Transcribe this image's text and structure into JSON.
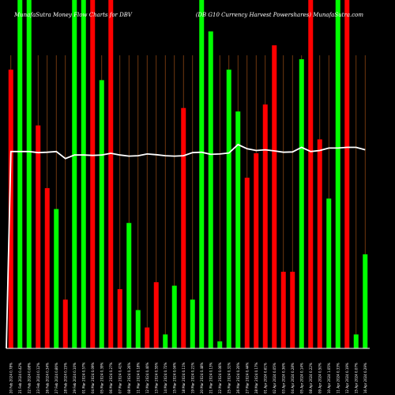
{
  "chart_data": {
    "type": "bar",
    "title_left": "MunafaSutra  Money Flow  Charts for DBV",
    "title_right": "(DB G10  Currency Harvest Powershares) MunafaSutra.com",
    "ylim": [
      0,
      100
    ],
    "colors": {
      "up": "#00ff00",
      "down": "#ff0000",
      "line": "#ffffff",
      "grid": "#8b4513",
      "baseline": "#ffffff"
    },
    "categories": [
      "20 Feb 2024",
      "21 Feb 2024",
      "22 Feb 2024",
      "23 Feb 2024",
      "26 Feb 2024",
      "27 Feb 2024",
      "28 Feb 2024",
      "29 Feb 2024",
      "01 Mar 2024",
      "04 Mar 2024",
      "05 Mar 2024",
      "06 Mar 2024",
      "07 Mar 2024",
      "08 Mar 2024",
      "11 Mar 2024",
      "12 Mar 2024",
      "13 Mar 2024",
      "14 Mar 2024",
      "15 Mar 2024",
      "18 Mar 2024",
      "19 Mar 2024",
      "20 Mar 2024",
      "21 Mar 2024",
      "22 Mar 2024",
      "25 Mar 2024",
      "26 Mar 2024",
      "27 Mar 2024",
      "28 Mar 2024",
      "01 Apr 2024",
      "02 Apr 2024",
      "03 Apr 2024",
      "04 Apr 2024",
      "05 Apr 2024",
      "08 Apr 2024",
      "09 Apr 2024",
      "10 Apr 2024",
      "11 Apr 2024",
      "12 Apr 2024",
      "15 Apr 2024",
      "16 Apr 2024"
    ],
    "tick_labels": [
      "20 Feb 2024 0.78%",
      "21 Feb 2024 0.42%",
      "22 Feb 2024 0.08%",
      "23 Feb 2024 0.12%",
      "26 Feb 2024 0.34%",
      "27 Feb 2024 0.80%",
      "28 Feb 2024 0.15%",
      "29 Feb 2024 0.10%",
      "01 Mar 2024 0.57%",
      "04 Mar 2024 0.09%",
      "05 Mar 2024 0.39%",
      "06 Mar 2024 0.27%",
      "07 Mar 2024 0.41%",
      "08 Mar 2024 0.26%",
      "11 Mar 2024 0.18%",
      "12 Mar 2024 0.40%",
      "13 Mar 2024 0.55%",
      "14 Mar 2024 0.72%",
      "15 Mar 2024 0.04%",
      "18 Mar 2024 0.11%",
      "19 Mar 2024 0.21%",
      "20 Mar 2024 0.48%",
      "21 Mar 2024 0.13%",
      "22 Mar 2024 0.06%",
      "25 Mar 2024 0.31%",
      "26 Mar 2024 0.20%",
      "27 Mar 2024 0.44%",
      "28 Mar 2024 0.17%",
      "01 Apr 2024 0.61%",
      "02 Apr 2024 0.05%",
      "03 Apr 2024 0.36%",
      "04 Apr 2024 0.28%",
      "05 Apr 2024 0.14%",
      "08 Apr 2024 0.22%",
      "09 Apr 2024 0.50%",
      "10 Apr 2024 1.05%",
      "11 Apr 2024 0.33%",
      "12 Apr 2024 0.19%",
      "15 Apr 2024 0.07%",
      "16 Apr 2024 0.29%"
    ],
    "series": [
      {
        "values": [
          80,
          100,
          100,
          64,
          46,
          40,
          14,
          100,
          100,
          100,
          77,
          100,
          17,
          36,
          11,
          6,
          19,
          4,
          18,
          69,
          14,
          100,
          91,
          2,
          80,
          68,
          49,
          56,
          70,
          87,
          22,
          22,
          83,
          100,
          60,
          43,
          100,
          100,
          4,
          27
        ],
        "directions": [
          "down",
          "up",
          "up",
          "down",
          "down",
          "up",
          "down",
          "up",
          "up",
          "down",
          "up",
          "down",
          "down",
          "up",
          "up",
          "down",
          "down",
          "up",
          "up",
          "down",
          "up",
          "up",
          "up",
          "up",
          "up",
          "up",
          "down",
          "down",
          "down",
          "down",
          "down",
          "down",
          "up",
          "down",
          "down",
          "up",
          "up",
          "down",
          "up",
          "up"
        ]
      },
      {
        "type": "line",
        "values": [
          56.5,
          56.5,
          56.5,
          56.2,
          56.3,
          56.5,
          54.5,
          55.5,
          55.5,
          55.4,
          55.5,
          56,
          55.5,
          55.2,
          55.3,
          55.8,
          55.6,
          55.3,
          55.2,
          55.3,
          56.2,
          56.3,
          55.7,
          55.8,
          56.1,
          58.5,
          57.3,
          56.8,
          57,
          56.7,
          56.3,
          56.4,
          57.7,
          56.5,
          56.8,
          57.5,
          57.5,
          57.7,
          57.7,
          57
        ],
        "start_value": 0
      }
    ]
  }
}
